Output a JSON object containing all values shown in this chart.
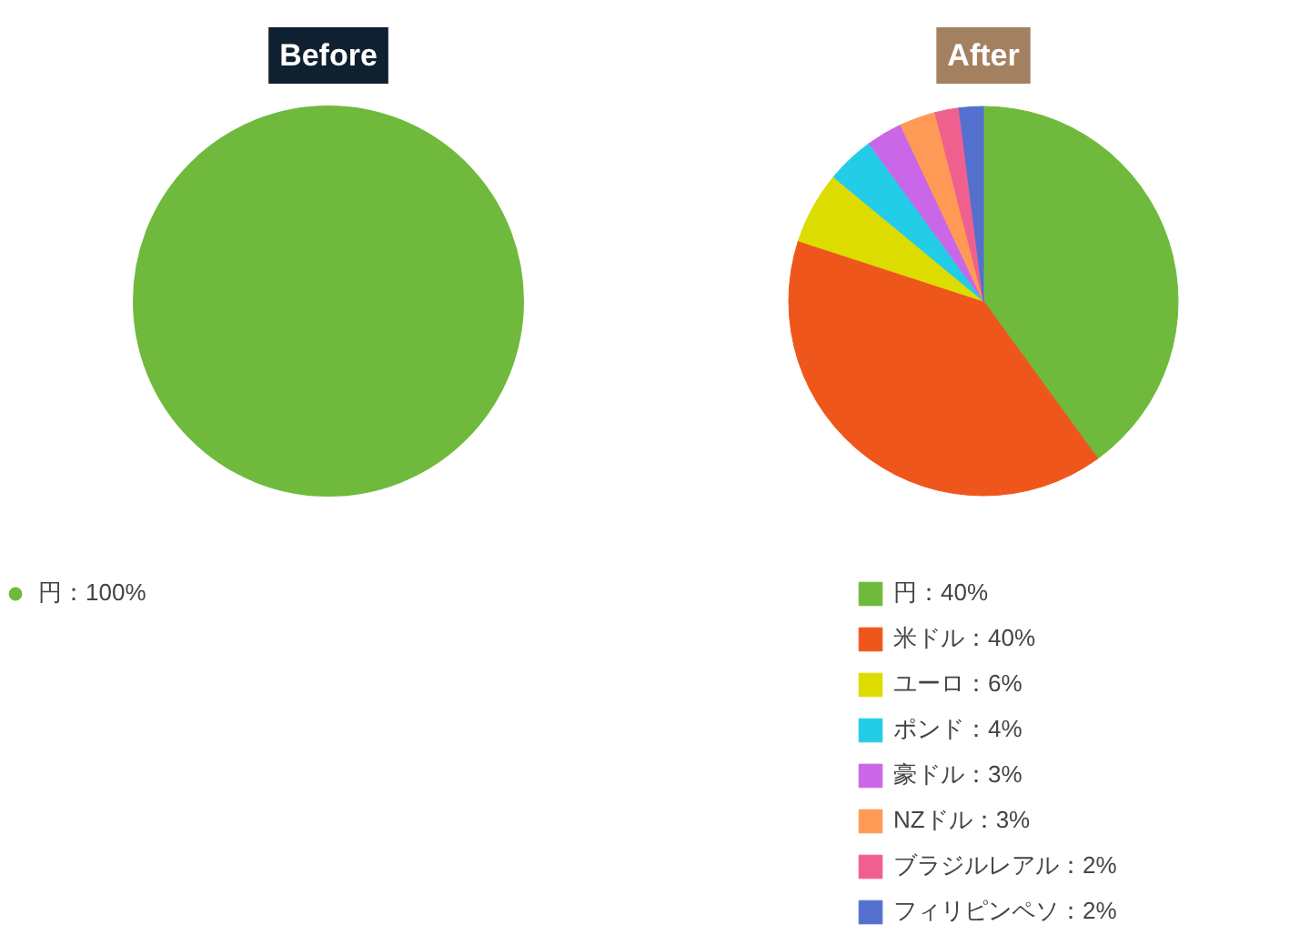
{
  "chart_data": [
    {
      "type": "pie",
      "title": "Before",
      "categories": [
        "円：100%"
      ],
      "values": [
        100
      ],
      "colors": [
        "#6fba3c"
      ],
      "legend": "bottom"
    },
    {
      "type": "pie",
      "title": "After",
      "categories": [
        "円：40%",
        "米ドル：40%",
        "ユーロ：6%",
        "ポンド：4%",
        "豪ドル：3%",
        "NZドル：3%",
        "ブラジルレアル：2%",
        "フィリピンペソ：2%"
      ],
      "values": [
        40,
        40,
        6,
        4,
        3,
        3,
        2,
        2
      ],
      "colors": [
        "#6fba3c",
        "#ef561c",
        "#dcdc00",
        "#23cde8",
        "#c967e8",
        "#ff9a56",
        "#f0608e",
        "#5470cf"
      ],
      "legend": "bottom"
    }
  ]
}
